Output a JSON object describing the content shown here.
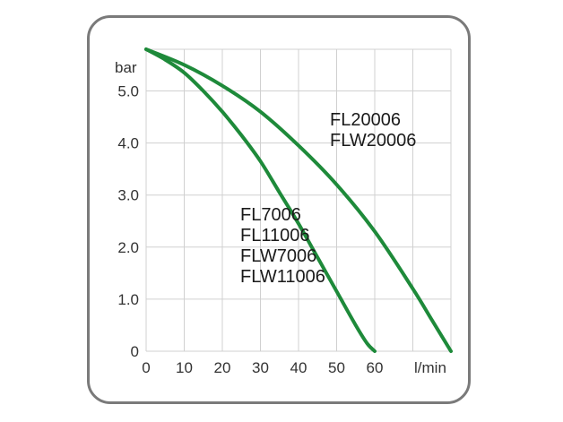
{
  "chart_data": {
    "type": "line",
    "title": "",
    "xlabel": "",
    "ylabel": "",
    "x_unit": "l/min",
    "y_unit": "bar",
    "xlim": [
      0,
      80
    ],
    "ylim": [
      0,
      5.8
    ],
    "x_ticks": [
      "0",
      "10",
      "20",
      "30",
      "40",
      "50",
      "60"
    ],
    "y_ticks": [
      "0",
      "1.0",
      "2.0",
      "3.0",
      "4.0",
      "5.0"
    ],
    "grid": true,
    "line_color": "#1e8a3a",
    "series": [
      {
        "labels": [
          "FL7006",
          "FL11006",
          "FLW7006",
          "FLW11006"
        ],
        "x": [
          0,
          5,
          10,
          15,
          20,
          25,
          30,
          35,
          40,
          45,
          50,
          55,
          58,
          60
        ],
        "y": [
          5.8,
          5.6,
          5.35,
          5.0,
          4.6,
          4.15,
          3.65,
          3.05,
          2.45,
          1.8,
          1.15,
          0.5,
          0.15,
          0
        ]
      },
      {
        "labels": [
          "FL20006",
          "FLW20006"
        ],
        "x": [
          0,
          10,
          20,
          30,
          40,
          50,
          60,
          70,
          75,
          80
        ],
        "y": [
          5.8,
          5.5,
          5.1,
          4.6,
          3.95,
          3.2,
          2.3,
          1.2,
          0.6,
          0
        ]
      }
    ]
  }
}
